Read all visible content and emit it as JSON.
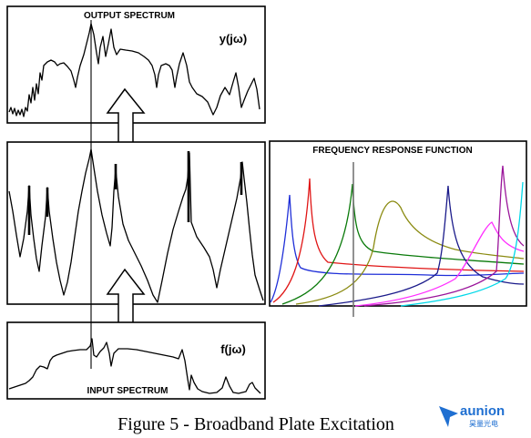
{
  "panels": {
    "output": {
      "title": "OUTPUT SPECTRUM",
      "symbol": "y(jω)"
    },
    "input": {
      "title": "INPUT SPECTRUM",
      "symbol": "f(jω)"
    },
    "frf": {
      "title": "FREQUENCY RESPONSE FUNCTION",
      "curve_colors": [
        "#1f2fd8",
        "#e01414",
        "#0a7a0a",
        "#8a8a10",
        "#1a1a8a",
        "#ff2cff",
        "#9a149a",
        "#00d8e8"
      ]
    }
  },
  "caption": "Figure 5  - Broadband Plate Excitation",
  "watermark": {
    "brand": "aunion",
    "sub": "昊量光电"
  }
}
